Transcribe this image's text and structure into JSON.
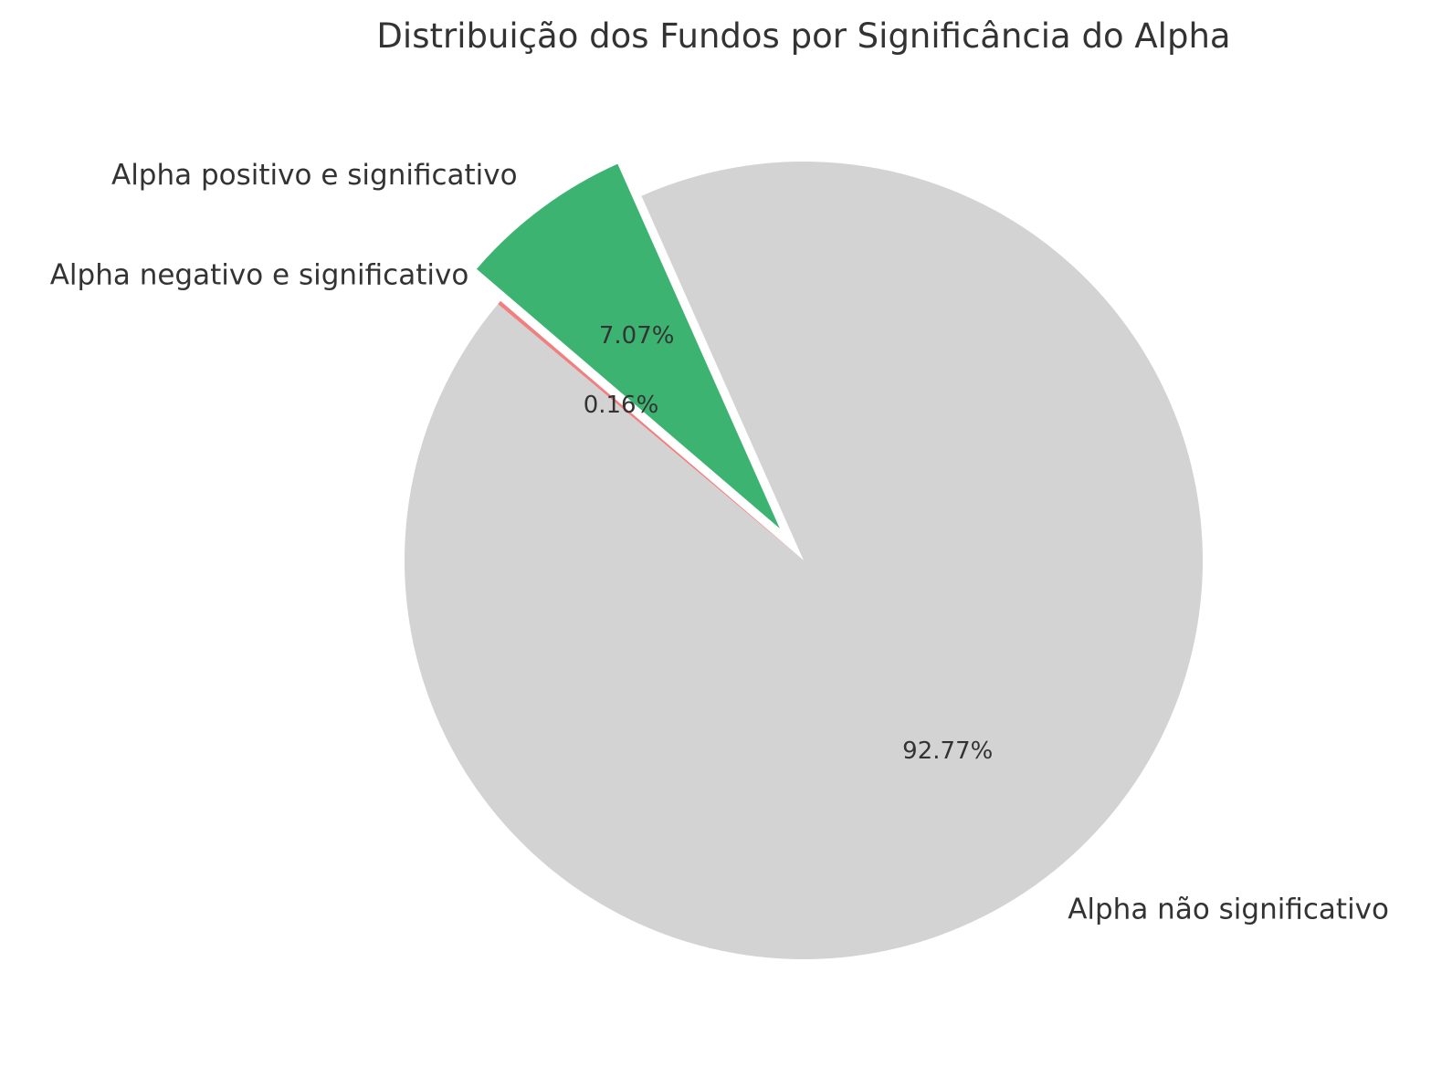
{
  "chart_data": {
    "type": "pie",
    "title": "Distribuição dos Fundos por Significância do Alpha",
    "slices": [
      {
        "label": "Alpha não significativo",
        "value": 92.77,
        "value_label": "92.77%",
        "color": "#d3d3d3",
        "exploded": false
      },
      {
        "label": "Alpha positivo e significativo",
        "value": 7.07,
        "value_label": "7.07%",
        "color": "#3cb371",
        "exploded": true
      },
      {
        "label": "Alpha negativo e significativo",
        "value": 0.16,
        "value_label": "0.16%",
        "color": "#f08080",
        "exploded": false
      }
    ],
    "start_angle_deg": 140,
    "direction": "counterclockwise",
    "legend": "none"
  }
}
